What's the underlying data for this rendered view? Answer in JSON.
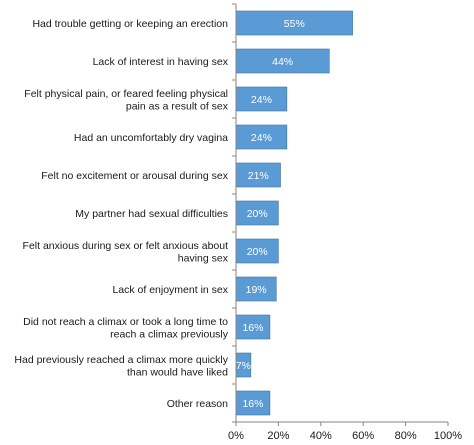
{
  "chart_data": {
    "type": "bar",
    "orientation": "horizontal",
    "categories": [
      [
        "Had trouble getting or keeping an erection"
      ],
      [
        "Lack of interest in having sex"
      ],
      [
        "Felt physical pain, or feared feeling physical",
        "pain as a result of sex"
      ],
      [
        "Had an uncomfortably dry vagina"
      ],
      [
        "Felt no excitement or arousal during sex"
      ],
      [
        "My partner had sexual difficulties"
      ],
      [
        "Felt anxious during sex or felt anxious about",
        "having sex"
      ],
      [
        "Lack of enjoyment in sex"
      ],
      [
        "Did not reach a climax or took a long time to",
        "reach a climax previously"
      ],
      [
        "Had previously reached a climax more quickly",
        "than would have liked"
      ],
      [
        "Other reason"
      ]
    ],
    "values": [
      55,
      44,
      24,
      24,
      21,
      20,
      20,
      19,
      16,
      7,
      16
    ],
    "data_labels": [
      "55%",
      "44%",
      "24%",
      "24%",
      "21%",
      "20%",
      "20%",
      "19%",
      "16%",
      "7%",
      "16%"
    ],
    "xlim": [
      0,
      100
    ],
    "x_ticks": [
      0,
      20,
      40,
      60,
      80,
      100
    ],
    "x_tick_labels": [
      "0%",
      "20%",
      "40%",
      "60%",
      "80%",
      "100%"
    ],
    "grid": false,
    "legend": "none",
    "bar_color": "#5b9bd5",
    "bar_edge_color": "#41719c",
    "axis_color": "#868686"
  }
}
